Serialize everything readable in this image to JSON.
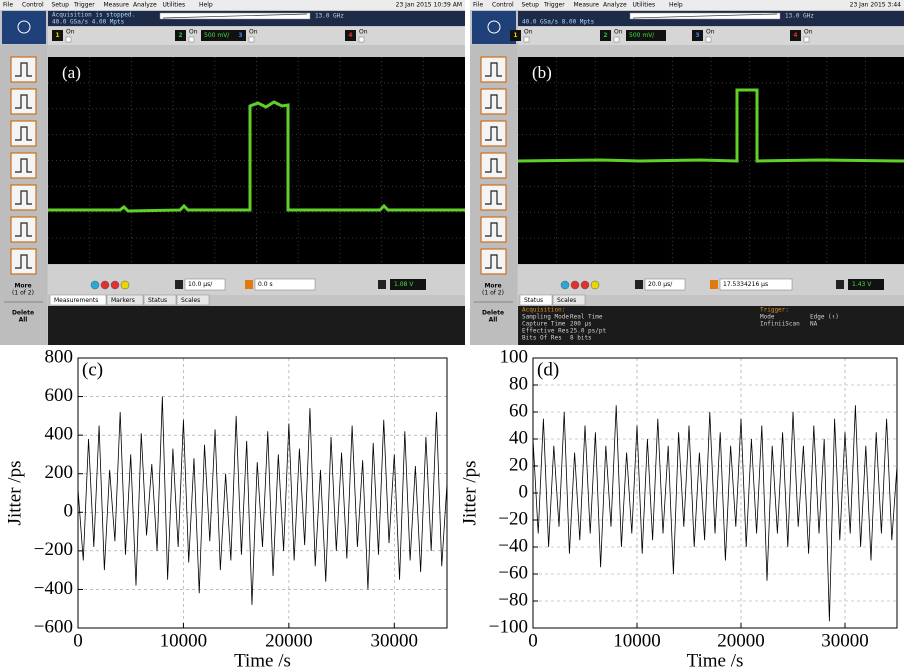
{
  "screenshots": [
    {
      "menu": [
        "File",
        "Control",
        "Setup",
        "Trigger",
        "Measure",
        "Analyze",
        "Utilities",
        "Help"
      ],
      "date": "23 Jan 2015 10:39 AM",
      "status": [
        "Acquisition is stopped.",
        "40.0 GSa/s   4.00 Mpts"
      ],
      "bandwidth": "13.0 GHz",
      "channels": [
        {
          "number": "1",
          "state": "On"
        },
        {
          "number": "2",
          "state": "On",
          "scale": "500 mV/"
        },
        {
          "number": "3",
          "state": "On"
        },
        {
          "number": "4",
          "state": "On"
        }
      ],
      "panel_label": "(a)",
      "more": [
        "More",
        "(1 of 2)"
      ],
      "delete": [
        "Delete",
        "All"
      ],
      "timebase": "10.0 µs/",
      "delay": "0.0 s",
      "trigger_level": "1.08 V",
      "tabs": [
        "Measurements",
        "Markers",
        "Status",
        "Scales"
      ]
    },
    {
      "menu": [
        "File",
        "Control",
        "Setup",
        "Trigger",
        "Measure",
        "Analyze",
        "Utilities",
        "Help"
      ],
      "date": "23 Jan 2015 3:44",
      "status": [
        "40.0 GSa/s   8.00 Mpts"
      ],
      "bandwidth": "13.0 GHz",
      "channels": [
        {
          "number": "1",
          "state": "On"
        },
        {
          "number": "2",
          "state": "On",
          "scale": "500 mV/"
        },
        {
          "number": "3",
          "state": "On"
        },
        {
          "number": "4",
          "state": "On"
        }
      ],
      "panel_label": "(b)",
      "more": [
        "More",
        "(1 of 2)"
      ],
      "delete": [
        "Delete",
        "All"
      ],
      "timebase": "20.0 µs/",
      "delay": "17.5334216 µs",
      "trigger_level": "1.43 V",
      "tabs": [
        "Status",
        "Scales"
      ],
      "acquisition_title": "Acquisition:",
      "acquisition": [
        [
          "Sampling Mode",
          "Real Time"
        ],
        [
          "Capture Time",
          "200 µs"
        ],
        [
          "Effective Res",
          "25.0 ps/pt"
        ],
        [
          "Bits Of Res",
          "8 bits"
        ]
      ],
      "trigger_title": "Trigger:",
      "trigger": [
        [
          "Mode",
          "Edge (↑)"
        ],
        [
          "InfiniiScan",
          "NA"
        ]
      ]
    }
  ],
  "chart_data": [
    {
      "type": "line",
      "annotation": "(c)",
      "x_label": "Time /s",
      "y_label": "Jitter /ps",
      "color": "#000000",
      "grid": true,
      "xlim": [
        0,
        35000
      ],
      "xticks": [
        0,
        10000,
        20000,
        30000
      ],
      "ylim": [
        -600,
        800
      ],
      "yticks": [
        {
          "value": -600,
          "label": "−600"
        },
        {
          "value": -400,
          "label": "−400"
        },
        {
          "value": -200,
          "label": "−200"
        },
        0,
        200,
        400,
        600,
        800
      ],
      "x": [
        0,
        500,
        1000,
        1500,
        2000,
        2500,
        3000,
        3500,
        4000,
        4500,
        5000,
        5500,
        6000,
        6500,
        7000,
        7500,
        8000,
        8500,
        9000,
        9500,
        10000,
        10500,
        11000,
        11500,
        12000,
        12500,
        13000,
        13500,
        14000,
        14500,
        15000,
        15500,
        16000,
        16500,
        17000,
        17500,
        18000,
        18500,
        19000,
        19500,
        20000,
        20500,
        21000,
        21500,
        22000,
        22500,
        23000,
        23500,
        24000,
        24500,
        25000,
        25500,
        26000,
        26500,
        27000,
        27500,
        28000,
        28500,
        29000,
        29500,
        30000,
        30500,
        31000,
        31500,
        32000,
        32500,
        33000,
        33500,
        34000,
        34500,
        35000
      ],
      "values": [
        120,
        -250,
        380,
        -180,
        450,
        -300,
        220,
        -150,
        520,
        -220,
        300,
        -380,
        410,
        -120,
        250,
        -200,
        600,
        -350,
        330,
        -180,
        480,
        -260,
        280,
        -420,
        350,
        -150,
        430,
        -300,
        200,
        -250,
        500,
        -220,
        370,
        -480,
        260,
        -180,
        420,
        -330,
        300,
        -200,
        460,
        -250,
        330,
        -170,
        540,
        -280,
        220,
        -360,
        390,
        -200,
        310,
        -240,
        450,
        -180,
        270,
        -400,
        360,
        -220,
        480,
        -160,
        300,
        -350,
        420,
        -250,
        240,
        -310,
        390,
        -200,
        520,
        -280,
        150
      ]
    },
    {
      "type": "line",
      "annotation": "(d)",
      "x_label": "Time /s",
      "y_label": "Jitter /ps",
      "color": "#000000",
      "grid": true,
      "xlim": [
        0,
        35000
      ],
      "xticks": [
        0,
        10000,
        20000,
        30000
      ],
      "ylim": [
        -100,
        100
      ],
      "yticks": [
        {
          "value": -100,
          "label": "−100"
        },
        {
          "value": -80,
          "label": "−80"
        },
        {
          "value": -60,
          "label": "−60"
        },
        {
          "value": -40,
          "label": "−40"
        },
        {
          "value": -20,
          "label": "−20"
        },
        0,
        20,
        40,
        60,
        80,
        100
      ],
      "x": [
        0,
        500,
        1000,
        1500,
        2000,
        2500,
        3000,
        3500,
        4000,
        4500,
        5000,
        5500,
        6000,
        6500,
        7000,
        7500,
        8000,
        8500,
        9000,
        9500,
        10000,
        10500,
        11000,
        11500,
        12000,
        12500,
        13000,
        13500,
        14000,
        14500,
        15000,
        15500,
        16000,
        16500,
        17000,
        17500,
        18000,
        18500,
        19000,
        19500,
        20000,
        20500,
        21000,
        21500,
        22000,
        22500,
        23000,
        23500,
        24000,
        24500,
        25000,
        25500,
        26000,
        26500,
        27000,
        27500,
        28000,
        28500,
        29000,
        29500,
        30000,
        30500,
        31000,
        31500,
        32000,
        32500,
        33000,
        33500,
        34000,
        34500,
        35000
      ],
      "values": [
        40,
        -30,
        55,
        -40,
        35,
        -25,
        60,
        -45,
        30,
        -35,
        50,
        -30,
        45,
        -55,
        35,
        -25,
        65,
        -40,
        30,
        -30,
        50,
        -45,
        40,
        -35,
        55,
        -30,
        35,
        -60,
        45,
        -25,
        50,
        -40,
        30,
        -35,
        60,
        -30,
        45,
        -50,
        35,
        -25,
        55,
        -40,
        40,
        -30,
        50,
        -65,
        35,
        -30,
        45,
        -40,
        60,
        -25,
        35,
        -45,
        50,
        -30,
        40,
        -95,
        55,
        -35,
        45,
        -30,
        65,
        -40,
        35,
        -50,
        45,
        -30,
        55,
        -35,
        20
      ]
    }
  ]
}
